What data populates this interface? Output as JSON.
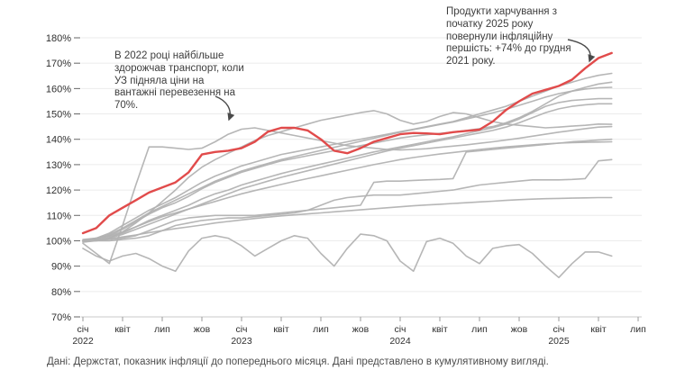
{
  "annotations": {
    "transport_2022": "В 2022 році найбільше\nздорожчав транспорт, коли\nУЗ підняла ціни на\nвантажні перевезення на\n70%.",
    "food_2025": "Продукти харчування з\nпочатку 2025 року\nповернули інфляційну\nпершість: +74% до грудня\n2021 року."
  },
  "caption": "Дані: Держстат, показник інфляції до попереднього місяця. Дані представлено в кумулятивному вигляді.",
  "chart_data": {
    "type": "line",
    "title": "",
    "xlabel": "",
    "ylabel": "",
    "x_unit": "month",
    "x_start": "2022-01",
    "x_end": "2025-05",
    "ylim": [
      70,
      180
    ],
    "y_suffix": "%",
    "grid": "horizontal",
    "legend": "none",
    "y_ticks": [
      70,
      80,
      90,
      100,
      110,
      120,
      130,
      140,
      150,
      160,
      170,
      180
    ],
    "x_ticks": [
      {
        "label": "січ",
        "year": "2022"
      },
      {
        "label": "квіт"
      },
      {
        "label": "лип"
      },
      {
        "label": "жов"
      },
      {
        "label": "січ",
        "year": "2023"
      },
      {
        "label": "квіт"
      },
      {
        "label": "лип"
      },
      {
        "label": "жов"
      },
      {
        "label": "січ",
        "year": "2024"
      },
      {
        "label": "квіт"
      },
      {
        "label": "лип"
      },
      {
        "label": "жов"
      },
      {
        "label": "січ",
        "year": "2025"
      },
      {
        "label": "квіт"
      },
      {
        "label": "лип"
      }
    ],
    "colors": {
      "highlight_line": "#e14b4b",
      "gray_line": "#b2b2b2",
      "grid_line": "#ebebeb",
      "axis_line": "#c9c9c9",
      "tick_mark": "#999999",
      "label_text": "#2f2f2f",
      "arrow": "#4a4a4a"
    },
    "series": [
      {
        "id": "clothing-seasonal",
        "label": "",
        "color": "gray",
        "values": [
          97,
          94,
          92,
          94,
          95,
          93,
          90,
          88,
          96,
          101,
          102,
          101,
          98,
          94,
          97,
          100,
          102,
          101,
          95,
          90,
          97,
          102.6,
          102,
          100,
          92,
          88,
          99.7,
          101,
          99,
          94,
          91,
          97,
          98,
          98.5,
          95,
          90,
          85.5,
          91,
          95.6,
          95.6,
          94
        ]
      },
      {
        "id": "gray-slow",
        "label": "",
        "color": "gray",
        "values": [
          100,
          100.3,
          100.8,
          101.5,
          102.3,
          103.2,
          104,
          104.8,
          105.5,
          106.2,
          107,
          107.6,
          108.2,
          108.8,
          109.3,
          109.8,
          110.2,
          110.6,
          111,
          111.4,
          111.8,
          112.2,
          112.6,
          113,
          113.4,
          113.8,
          114.1,
          114.4,
          114.7,
          115,
          115.3,
          115.6,
          115.9,
          116.2,
          116.4,
          116.6,
          116.7,
          116.8,
          116.9,
          117,
          117
        ]
      },
      {
        "id": "gray-staircase-comm",
        "label": "",
        "color": "gray",
        "values": [
          100,
          100,
          100,
          100.5,
          101,
          102,
          104,
          106,
          107,
          108,
          108.5,
          109,
          109,
          109.5,
          110,
          110.5,
          111,
          112,
          114,
          116,
          117,
          117.5,
          118,
          118,
          118,
          118.5,
          119,
          119.5,
          120,
          121,
          122,
          122.5,
          123,
          123.5,
          124,
          124,
          124,
          124.2,
          124.5,
          131.5,
          132
        ]
      },
      {
        "id": "gray-staircase-utilities",
        "label": "",
        "color": "gray",
        "values": [
          100,
          100,
          100.5,
          101,
          102,
          104,
          106,
          108,
          109,
          109.5,
          110,
          110,
          110,
          110,
          110.5,
          111,
          111.5,
          112,
          112.5,
          113,
          113.5,
          114,
          123,
          123.5,
          123.5,
          123.8,
          124,
          124.2,
          124.5,
          135,
          135.5,
          136,
          136.5,
          137,
          137.5,
          138,
          138.5,
          139,
          139.3,
          139.7,
          140
        ]
      },
      {
        "id": "gray-mid-1",
        "label": "",
        "color": "gray",
        "values": [
          100.2,
          101,
          102,
          103.5,
          105.5,
          107.5,
          109.5,
          111,
          112.5,
          114,
          115.5,
          117,
          118.5,
          119.8,
          121,
          122.2,
          123.4,
          124.5,
          125.6,
          126.7,
          127.8,
          128.9,
          130,
          131,
          132,
          132.8,
          133.5,
          134.2,
          134.8,
          135.4,
          136,
          136.5,
          137,
          137.4,
          137.8,
          138.2,
          138.5,
          138.7,
          138.8,
          138.9,
          139
        ]
      },
      {
        "id": "gray-mid-2",
        "label": "",
        "color": "gray",
        "values": [
          99.5,
          100.2,
          101,
          102.5,
          104.5,
          106.5,
          108.5,
          110.5,
          112.5,
          114.5,
          116.5,
          118.5,
          120.5,
          122,
          123.5,
          125,
          126.3,
          127.6,
          128.9,
          130.2,
          131.5,
          132.8,
          134.1,
          135.4,
          136.5,
          137.5,
          138.5,
          139.5,
          140.5,
          141.5,
          142.5,
          143.5,
          144.8,
          146.5,
          148.5,
          150.5,
          152,
          153,
          153.6,
          154,
          154
        ]
      },
      {
        "id": "gray-mid-3",
        "label": "",
        "color": "gray",
        "values": [
          100,
          100.5,
          101.5,
          103,
          105.5,
          108,
          110,
          112,
          114,
          116.5,
          118.5,
          120,
          122,
          123.5,
          125,
          126.5,
          127.8,
          129,
          130.2,
          131.4,
          132.6,
          133.8,
          135,
          136,
          137,
          138,
          139,
          140,
          141,
          142.2,
          143.4,
          144.6,
          146,
          148,
          150.5,
          153,
          154.5,
          155.3,
          155.7,
          156,
          156
        ]
      },
      {
        "id": "gray-upper-1",
        "label": "",
        "color": "gray",
        "values": [
          100,
          101,
          102.5,
          105,
          108,
          111,
          113.5,
          116,
          118.5,
          121,
          123.5,
          125.5,
          127.5,
          129,
          130.5,
          132,
          133.2,
          134.4,
          135.6,
          136.8,
          138,
          139.2,
          140.4,
          141.6,
          142.8,
          143.8,
          144.8,
          145.8,
          146.8,
          148,
          149.2,
          150.4,
          151.8,
          153.4,
          155,
          156.6,
          158,
          159,
          159.8,
          160.3,
          160.5
        ]
      },
      {
        "id": "gray-upper-2",
        "label": "",
        "color": "gray",
        "values": [
          100,
          100.8,
          102,
          104.5,
          107.5,
          110.5,
          113,
          115,
          117.5,
          120.5,
          123,
          125,
          127,
          128.5,
          130,
          131.5,
          132.5,
          133.5,
          134.5,
          135.5,
          136.5,
          137.5,
          138.5,
          139.5,
          140.5,
          141.2,
          141.8,
          142.3,
          142.8,
          143.5,
          144.2,
          145,
          146.5,
          148.5,
          151,
          154,
          157,
          159,
          160.5,
          161.8,
          162.5
        ]
      },
      {
        "id": "gray-upper-3",
        "label": "",
        "color": "gray",
        "values": [
          100.5,
          101,
          103,
          106,
          109,
          112,
          114.5,
          117,
          120,
          123,
          125.5,
          127.5,
          129.5,
          131,
          132.5,
          134,
          135,
          136,
          137,
          138,
          139,
          140,
          141,
          142,
          143,
          144,
          145,
          146,
          147,
          148.5,
          150,
          151.5,
          153,
          155,
          157,
          159,
          161,
          162.5,
          164,
          165.2,
          166
        ]
      },
      {
        "id": "gray-volatile",
        "label": "",
        "color": "gray",
        "values": [
          99.5,
          100,
          101,
          103.5,
          107,
          111,
          115.5,
          120,
          125,
          129,
          132,
          134.5,
          137,
          139.5,
          141.5,
          143,
          144.5,
          146,
          147.5,
          148.5,
          149.5,
          150.5,
          151.3,
          150,
          147.5,
          146,
          147,
          149,
          150.5,
          150,
          148.5,
          147,
          146,
          145.5,
          145,
          144.5,
          144.8,
          145.2,
          145.5,
          146,
          145.9
        ]
      },
      {
        "id": "transport",
        "label": "транспорт",
        "color": "gray",
        "values": [
          99,
          95,
          91,
          106,
          122,
          137,
          137,
          136.5,
          136,
          136.5,
          139,
          142,
          144,
          144.5,
          143.5,
          142.5,
          141.5,
          140.5,
          139.5,
          138.5,
          137.5,
          137,
          136.5,
          136,
          135.8,
          136,
          136.3,
          136.8,
          137.3,
          137.8,
          138.4,
          139,
          139.7,
          140.4,
          141.2,
          142,
          142.8,
          143.5,
          144.2,
          144.8,
          145
        ]
      },
      {
        "id": "food",
        "label": "продукти харчування",
        "color": "red",
        "values": [
          103,
          105,
          110,
          113,
          116,
          119,
          121,
          123,
          127,
          134,
          135,
          135.5,
          136.5,
          139,
          143,
          144.5,
          144.5,
          143.5,
          140,
          135.5,
          134.5,
          136.5,
          139,
          140.5,
          142,
          142.5,
          142.3,
          142,
          142.8,
          143.3,
          143.8,
          147,
          151.5,
          155,
          158,
          159.5,
          161,
          163.5,
          168,
          172,
          174
        ]
      }
    ]
  }
}
